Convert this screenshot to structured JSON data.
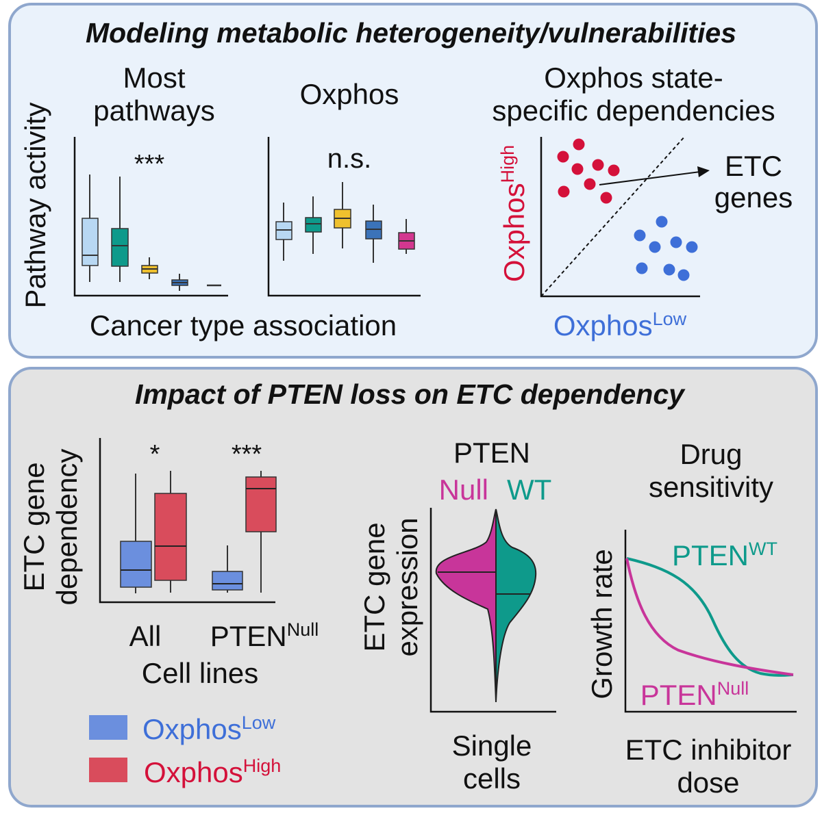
{
  "colors": {
    "teal": "#0e9a8b",
    "magenta": "#c8359a",
    "red": "#d4113a",
    "blue": "#3e6fd8",
    "box_blue": "#6b8fde",
    "box_red": "#d94c5c"
  },
  "top": {
    "title": "Modeling metabolic heterogeneity/vulnerabilities",
    "y_label": "Pathway activity",
    "x_label": "Cancer type association",
    "most_line1": "Most",
    "most_line2": "pathways",
    "most_sig": "***",
    "oxphos_title": "Oxphos",
    "oxphos_sig": "n.s.",
    "state_line1": "Oxphos state-",
    "state_line2": "specific dependencies",
    "scatter_y_main": "Oxphos",
    "scatter_y_sup": "High",
    "scatter_x_main": "Oxphos",
    "scatter_x_sup": "Low",
    "etc_line1": "ETC",
    "etc_line2": "genes"
  },
  "bottom": {
    "title": "Impact of PTEN loss on ETC dependency",
    "dep_y_line1": "ETC gene",
    "dep_y_line2": "dependency",
    "sig_all": "*",
    "sig_null": "***",
    "cat_all": "All",
    "cat_pten_main": "PTEN",
    "cat_pten_sup": "Null",
    "cell_lines": "Cell lines",
    "legend_low_main": "Oxphos",
    "legend_low_sup": "Low",
    "legend_high_main": "Oxphos",
    "legend_high_sup": "High",
    "pten_title": "PTEN",
    "null_label": "Null",
    "wt_label": "WT",
    "expr_line1": "ETC gene",
    "expr_line2": "expression",
    "single_line1": "Single",
    "single_line2": "cells",
    "drug_line1": "Drug",
    "drug_line2": "sensitivity",
    "growth_rate": "Growth rate",
    "curve_wt_main": "PTEN",
    "curve_wt_sup": "WT",
    "curve_null_main": "PTEN",
    "curve_null_sup": "Null",
    "dose_line1": "ETC inhibitor",
    "dose_line2": "dose"
  }
}
